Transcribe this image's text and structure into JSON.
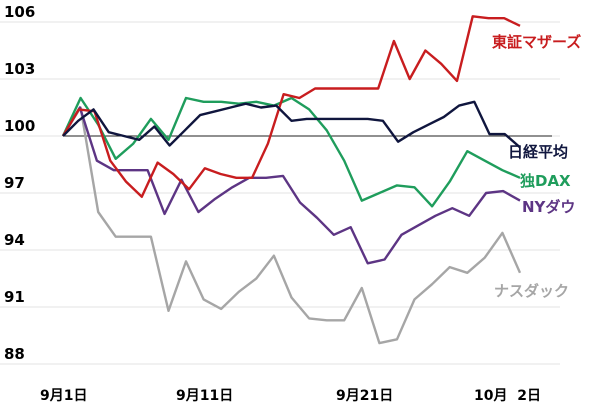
{
  "chart_data": {
    "type": "line",
    "y_ticks": [
      "106",
      "103",
      "100",
      "97",
      "94",
      "91",
      "88"
    ],
    "ylim": [
      88,
      106
    ],
    "x_ticks": [
      "9月1日",
      "9月11日",
      "9月21日",
      "10月  2日"
    ],
    "baseline": 100,
    "grid": true,
    "series": [
      {
        "name": "東証マザーズ",
        "color": "#c81d1f",
        "values": [
          100.0,
          101.4,
          101.3,
          98.7,
          97.6,
          96.8,
          98.6,
          98.0,
          97.2,
          98.3,
          98.0,
          97.8,
          97.8,
          99.6,
          102.2,
          102.0,
          102.5,
          102.5,
          102.5,
          102.5,
          102.5,
          105.0,
          103.0,
          104.5,
          103.8,
          102.9,
          106.3,
          106.2,
          106.2,
          105.8
        ]
      },
      {
        "name": "日経平均",
        "color": "#10163e",
        "values": [
          100.0,
          100.8,
          101.4,
          100.2,
          100.0,
          99.8,
          100.5,
          99.5,
          100.3,
          101.1,
          101.3,
          101.5,
          101.7,
          101.5,
          101.6,
          100.8,
          100.9,
          100.9,
          100.9,
          100.9,
          100.9,
          100.8,
          99.7,
          100.2,
          100.6,
          101.0,
          101.6,
          101.8,
          100.1,
          100.1,
          99.4
        ]
      },
      {
        "name": "独DAX",
        "color": "#1f9d5c",
        "values": [
          100.0,
          102.0,
          100.6,
          98.8,
          99.6,
          100.9,
          99.8,
          102.0,
          101.8,
          101.8,
          101.7,
          101.8,
          101.6,
          102.0,
          101.4,
          100.3,
          98.7,
          96.6,
          97.0,
          97.4,
          97.3,
          96.3,
          97.6,
          99.2,
          98.7,
          98.2,
          97.8
        ]
      },
      {
        "name": "NYダウ",
        "color": "#5d3584",
        "values": [
          100.0,
          101.5,
          98.7,
          98.2,
          98.2,
          98.2,
          95.9,
          97.7,
          96.0,
          96.7,
          97.3,
          97.8,
          97.8,
          97.9,
          96.5,
          95.7,
          94.8,
          95.2,
          93.3,
          93.5,
          94.8,
          95.3,
          95.8,
          96.2,
          95.8,
          97.0,
          97.1,
          96.6
        ]
      },
      {
        "name": "ナスダック",
        "color": "#a6a6a6",
        "values": [
          100.0,
          101.5,
          96.0,
          94.7,
          94.7,
          94.7,
          90.8,
          93.4,
          91.4,
          90.9,
          91.8,
          92.5,
          93.7,
          91.5,
          90.4,
          90.3,
          90.3,
          92.0,
          89.1,
          89.3,
          91.4,
          92.2,
          93.1,
          92.8,
          93.6,
          94.9,
          92.8
        ]
      }
    ]
  }
}
